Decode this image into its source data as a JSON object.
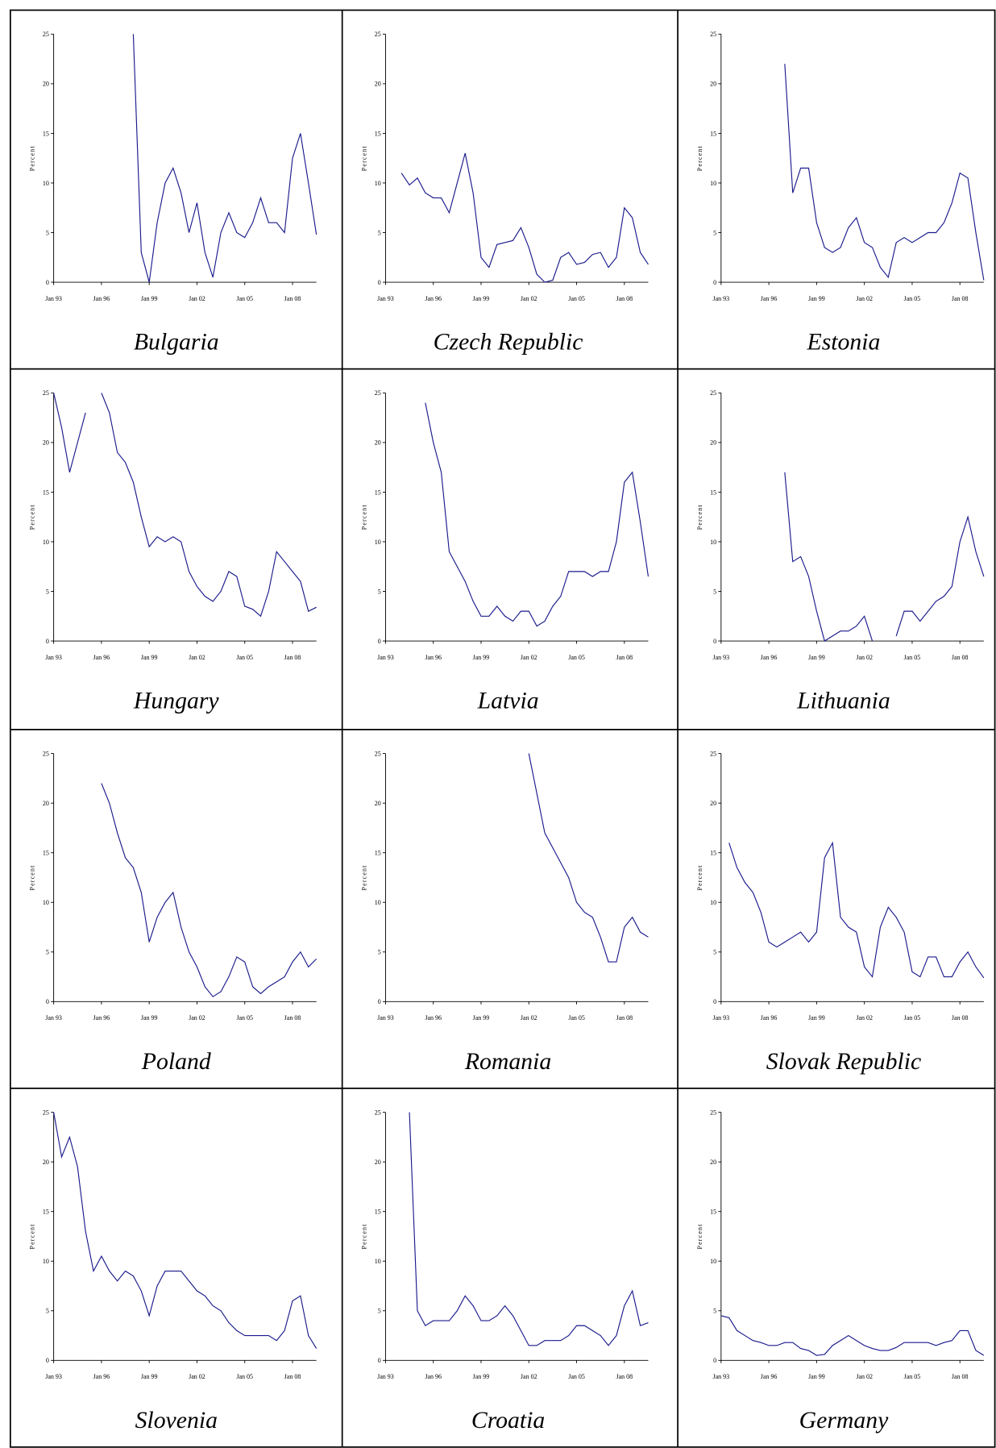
{
  "chart_data": [
    {
      "type": "line",
      "title": "Bulgaria",
      "y_label": "Percent",
      "color": "#1a1a8c",
      "x": [
        "Jan 93",
        "Jul 93",
        "Jan 94",
        "Jul 94",
        "Jan 95",
        "Jul 95",
        "Jan 96",
        "Jul 96",
        "Jan 97",
        "Jul 97",
        "Jan 98",
        "Jul 98",
        "Jan 99",
        "Jul 99",
        "Jan 00",
        "Jul 00",
        "Jan 01",
        "Jul 01",
        "Jan 02",
        "Jul 02",
        "Jan 03",
        "Jul 03",
        "Jan 04",
        "Jul 04",
        "Jan 05",
        "Jul 05",
        "Jan 06",
        "Jul 06",
        "Jan 07",
        "Jul 07",
        "Jan 08",
        "Jul 08",
        "Jan 09",
        "Jul 09"
      ],
      "values": [
        null,
        null,
        null,
        null,
        null,
        null,
        null,
        null,
        null,
        null,
        25,
        3,
        0,
        6,
        10,
        11.5,
        9,
        5,
        8,
        3,
        0.5,
        5,
        7,
        5,
        4.5,
        6,
        8.5,
        6,
        6,
        5,
        12.5,
        15,
        10,
        4.8
      ],
      "xticks": [
        "Jan 93",
        "Jan 96",
        "Jan 99",
        "Jan 02",
        "Jan 05",
        "Jan 08"
      ],
      "ylim": [
        0,
        25
      ],
      "yticks": [
        0,
        5,
        10,
        15,
        20,
        25
      ]
    },
    {
      "type": "line",
      "title": "Czech Republic",
      "y_label": "Percent",
      "color": "#1a1a8c",
      "x": [
        "Jan 93",
        "Jul 93",
        "Jan 94",
        "Jul 94",
        "Jan 95",
        "Jul 95",
        "Jan 96",
        "Jul 96",
        "Jan 97",
        "Jul 97",
        "Jan 98",
        "Jul 98",
        "Jan 99",
        "Jul 99",
        "Jan 00",
        "Jul 00",
        "Jan 01",
        "Jul 01",
        "Jan 02",
        "Jul 02",
        "Jan 03",
        "Jul 03",
        "Jan 04",
        "Jul 04",
        "Jan 05",
        "Jul 05",
        "Jan 06",
        "Jul 06",
        "Jan 07",
        "Jul 07",
        "Jan 08",
        "Jul 08",
        "Jan 09",
        "Jul 09"
      ],
      "values": [
        null,
        null,
        11,
        9.8,
        10.5,
        9,
        8.5,
        8.5,
        7,
        10,
        13,
        9,
        2.5,
        1.5,
        3.8,
        4,
        4.2,
        5.5,
        3.5,
        0.8,
        0,
        0.2,
        2.5,
        3,
        1.8,
        2,
        2.8,
        3,
        1.5,
        2.5,
        7.5,
        6.5,
        3,
        1.8
      ],
      "xticks": [
        "Jan 93",
        "Jan 96",
        "Jan 99",
        "Jan 02",
        "Jan 05",
        "Jan 08"
      ],
      "ylim": [
        0,
        25
      ],
      "yticks": [
        0,
        5,
        10,
        15,
        20,
        25
      ]
    },
    {
      "type": "line",
      "title": "Estonia",
      "y_label": "Percent",
      "color": "#1a1a8c",
      "x": [
        "Jan 93",
        "Jul 93",
        "Jan 94",
        "Jul 94",
        "Jan 95",
        "Jul 95",
        "Jan 96",
        "Jul 96",
        "Jan 97",
        "Jul 97",
        "Jan 98",
        "Jul 98",
        "Jan 99",
        "Jul 99",
        "Jan 00",
        "Jul 00",
        "Jan 01",
        "Jul 01",
        "Jan 02",
        "Jul 02",
        "Jan 03",
        "Jul 03",
        "Jan 04",
        "Jul 04",
        "Jan 05",
        "Jul 05",
        "Jan 06",
        "Jul 06",
        "Jan 07",
        "Jul 07",
        "Jan 08",
        "Jul 08",
        "Jan 09",
        "Jul 09"
      ],
      "values": [
        null,
        null,
        null,
        null,
        null,
        null,
        null,
        null,
        22,
        9,
        11.5,
        11.5,
        6,
        3.5,
        3,
        3.5,
        5.5,
        6.5,
        4,
        3.5,
        1.5,
        0.5,
        4,
        4.5,
        4,
        4.5,
        5,
        5,
        6,
        8,
        11,
        10.5,
        5,
        0.2
      ],
      "xticks": [
        "Jan 93",
        "Jan 96",
        "Jan 99",
        "Jan 02",
        "Jan 05",
        "Jan 08"
      ],
      "ylim": [
        0,
        25
      ],
      "yticks": [
        0,
        5,
        10,
        15,
        20,
        25
      ]
    },
    {
      "type": "line",
      "title": "Hungary",
      "y_label": "Percent",
      "color": "#1a1a8c",
      "x": [
        "Jan 93",
        "Jul 93",
        "Jan 94",
        "Jul 94",
        "Jan 95",
        "Jul 95",
        "Jan 96",
        "Jul 96",
        "Jan 97",
        "Jul 97",
        "Jan 98",
        "Jul 98",
        "Jan 99",
        "Jul 99",
        "Jan 00",
        "Jul 00",
        "Jan 01",
        "Jul 01",
        "Jan 02",
        "Jul 02",
        "Jan 03",
        "Jul 03",
        "Jan 04",
        "Jul 04",
        "Jan 05",
        "Jul 05",
        "Jan 06",
        "Jul 06",
        "Jan 07",
        "Jul 07",
        "Jan 08",
        "Jul 08",
        "Jan 09",
        "Jul 09"
      ],
      "values": [
        25,
        21.5,
        17,
        20,
        23,
        null,
        25,
        23,
        19,
        18,
        16,
        12.5,
        9.5,
        10.5,
        10,
        10.5,
        10,
        7,
        5.5,
        4.5,
        4,
        5,
        7,
        6.5,
        3.5,
        3.2,
        2.5,
        5,
        9,
        8,
        7,
        6,
        3,
        3.4
      ],
      "xticks": [
        "Jan 93",
        "Jan 96",
        "Jan 99",
        "Jan 02",
        "Jan 05",
        "Jan 08"
      ],
      "ylim": [
        0,
        25
      ],
      "yticks": [
        0,
        5,
        10,
        15,
        20,
        25
      ]
    },
    {
      "type": "line",
      "title": "Latvia",
      "y_label": "Percent",
      "color": "#1a1a8c",
      "x": [
        "Jan 93",
        "Jul 93",
        "Jan 94",
        "Jul 94",
        "Jan 95",
        "Jul 95",
        "Jan 96",
        "Jul 96",
        "Jan 97",
        "Jul 97",
        "Jan 98",
        "Jul 98",
        "Jan 99",
        "Jul 99",
        "Jan 00",
        "Jul 00",
        "Jan 01",
        "Jul 01",
        "Jan 02",
        "Jul 02",
        "Jan 03",
        "Jul 03",
        "Jan 04",
        "Jul 04",
        "Jan 05",
        "Jul 05",
        "Jan 06",
        "Jul 06",
        "Jan 07",
        "Jul 07",
        "Jan 08",
        "Jul 08",
        "Jan 09",
        "Jul 09"
      ],
      "values": [
        null,
        null,
        null,
        null,
        null,
        24,
        20,
        17,
        9,
        7.5,
        6,
        4,
        2.5,
        2.5,
        3.5,
        2.5,
        2,
        3,
        3,
        1.5,
        2,
        3.5,
        4.5,
        7,
        7,
        7,
        6.5,
        7,
        7,
        10,
        16,
        17,
        12,
        6.5
      ],
      "xticks": [
        "Jan 93",
        "Jan 96",
        "Jan 99",
        "Jan 02",
        "Jan 05",
        "Jan 08"
      ],
      "ylim": [
        0,
        25
      ],
      "yticks": [
        0,
        5,
        10,
        15,
        20,
        25
      ]
    },
    {
      "type": "line",
      "title": "Lithuania",
      "y_label": "Percent",
      "color": "#1a1a8c",
      "x": [
        "Jan 93",
        "Jul 93",
        "Jan 94",
        "Jul 94",
        "Jan 95",
        "Jul 95",
        "Jan 96",
        "Jul 96",
        "Jan 97",
        "Jul 97",
        "Jan 98",
        "Jul 98",
        "Jan 99",
        "Jul 99",
        "Jan 00",
        "Jul 00",
        "Jan 01",
        "Jul 01",
        "Jan 02",
        "Jul 02",
        "Jan 03",
        "Jul 03",
        "Jan 04",
        "Jul 04",
        "Jan 05",
        "Jul 05",
        "Jan 06",
        "Jul 06",
        "Jan 07",
        "Jul 07",
        "Jan 08",
        "Jul 08",
        "Jan 09",
        "Jul 09"
      ],
      "values": [
        null,
        null,
        null,
        null,
        null,
        null,
        null,
        null,
        17,
        8,
        8.5,
        6.5,
        3,
        0,
        0.5,
        1,
        1,
        1.5,
        2.5,
        0,
        null,
        null,
        0.5,
        3,
        3,
        2,
        3,
        4,
        4.5,
        5.5,
        10,
        12.5,
        9,
        6.5
      ],
      "xticks": [
        "Jan 93",
        "Jan 96",
        "Jan 99",
        "Jan 02",
        "Jan 05",
        "Jan 08"
      ],
      "ylim": [
        0,
        25
      ],
      "yticks": [
        0,
        5,
        10,
        15,
        20,
        25
      ]
    },
    {
      "type": "line",
      "title": "Poland",
      "y_label": "Percent",
      "color": "#1a1a8c",
      "x": [
        "Jan 93",
        "Jul 93",
        "Jan 94",
        "Jul 94",
        "Jan 95",
        "Jul 95",
        "Jan 96",
        "Jul 96",
        "Jan 97",
        "Jul 97",
        "Jan 98",
        "Jul 98",
        "Jan 99",
        "Jul 99",
        "Jan 00",
        "Jul 00",
        "Jan 01",
        "Jul 01",
        "Jan 02",
        "Jul 02",
        "Jan 03",
        "Jul 03",
        "Jan 04",
        "Jul 04",
        "Jan 05",
        "Jul 05",
        "Jan 06",
        "Jul 06",
        "Jan 07",
        "Jul 07",
        "Jan 08",
        "Jul 08",
        "Jan 09",
        "Jul 09"
      ],
      "values": [
        null,
        null,
        null,
        null,
        null,
        null,
        22,
        20,
        17,
        14.5,
        13.5,
        11,
        6,
        8.5,
        10,
        11,
        7.5,
        5,
        3.5,
        1.5,
        0.5,
        1,
        2.5,
        4.5,
        4,
        1.5,
        0.8,
        1.5,
        2,
        2.5,
        4,
        5,
        3.5,
        4.3
      ],
      "xticks": [
        "Jan 93",
        "Jan 96",
        "Jan 99",
        "Jan 02",
        "Jan 05",
        "Jan 08"
      ],
      "ylim": [
        0,
        25
      ],
      "yticks": [
        0,
        5,
        10,
        15,
        20,
        25
      ]
    },
    {
      "type": "line",
      "title": "Romania",
      "y_label": "Percent",
      "color": "#1a1a8c",
      "x": [
        "Jan 93",
        "Jul 93",
        "Jan 94",
        "Jul 94",
        "Jan 95",
        "Jul 95",
        "Jan 96",
        "Jul 96",
        "Jan 97",
        "Jul 97",
        "Jan 98",
        "Jul 98",
        "Jan 99",
        "Jul 99",
        "Jan 00",
        "Jul 00",
        "Jan 01",
        "Jul 01",
        "Jan 02",
        "Jul 02",
        "Jan 03",
        "Jul 03",
        "Jan 04",
        "Jul 04",
        "Jan 05",
        "Jul 05",
        "Jan 06",
        "Jul 06",
        "Jan 07",
        "Jul 07",
        "Jan 08",
        "Jul 08",
        "Jan 09",
        "Jul 09"
      ],
      "values": [
        null,
        null,
        null,
        null,
        null,
        null,
        null,
        null,
        null,
        null,
        null,
        null,
        null,
        null,
        null,
        null,
        null,
        null,
        25,
        21,
        17,
        15.5,
        14,
        12.5,
        10,
        9,
        8.5,
        6.5,
        4,
        4,
        7.5,
        8.5,
        7,
        6.5
      ],
      "xticks": [
        "Jan 93",
        "Jan 96",
        "Jan 99",
        "Jan 02",
        "Jan 05",
        "Jan 08"
      ],
      "ylim": [
        0,
        25
      ],
      "yticks": [
        0,
        5,
        10,
        15,
        20,
        25
      ]
    },
    {
      "type": "line",
      "title": "Slovak Republic",
      "y_label": "Percent",
      "color": "#1a1a8c",
      "x": [
        "Jan 93",
        "Jul 93",
        "Jan 94",
        "Jul 94",
        "Jan 95",
        "Jul 95",
        "Jan 96",
        "Jul 96",
        "Jan 97",
        "Jul 97",
        "Jan 98",
        "Jul 98",
        "Jan 99",
        "Jul 99",
        "Jan 00",
        "Jul 00",
        "Jan 01",
        "Jul 01",
        "Jan 02",
        "Jul 02",
        "Jan 03",
        "Jul 03",
        "Jan 04",
        "Jul 04",
        "Jan 05",
        "Jul 05",
        "Jan 06",
        "Jul 06",
        "Jan 07",
        "Jul 07",
        "Jan 08",
        "Jul 08",
        "Jan 09",
        "Jul 09"
      ],
      "values": [
        null,
        16,
        13.5,
        12,
        11,
        9,
        6,
        5.5,
        6,
        6.5,
        7,
        6,
        7,
        14.5,
        16,
        8.5,
        7.5,
        7,
        3.5,
        2.5,
        7.5,
        9.5,
        8.5,
        7,
        3,
        2.5,
        4.5,
        4.5,
        2.5,
        2.5,
        4,
        5,
        3.5,
        2.4
      ],
      "xticks": [
        "Jan 93",
        "Jan 96",
        "Jan 99",
        "Jan 02",
        "Jan 05",
        "Jan 08"
      ],
      "ylim": [
        0,
        25
      ],
      "yticks": [
        0,
        5,
        10,
        15,
        20,
        25
      ]
    },
    {
      "type": "line",
      "title": "Slovenia",
      "y_label": "Percent",
      "color": "#1a1a8c",
      "x": [
        "Jan 93",
        "Jul 93",
        "Jan 94",
        "Jul 94",
        "Jan 95",
        "Jul 95",
        "Jan 96",
        "Jul 96",
        "Jan 97",
        "Jul 97",
        "Jan 98",
        "Jul 98",
        "Jan 99",
        "Jul 99",
        "Jan 00",
        "Jul 00",
        "Jan 01",
        "Jul 01",
        "Jan 02",
        "Jul 02",
        "Jan 03",
        "Jul 03",
        "Jan 04",
        "Jul 04",
        "Jan 05",
        "Jul 05",
        "Jan 06",
        "Jul 06",
        "Jan 07",
        "Jul 07",
        "Jan 08",
        "Jul 08",
        "Jan 09",
        "Jul 09"
      ],
      "values": [
        25,
        20.5,
        22.5,
        19.5,
        13,
        9,
        10.5,
        9,
        8,
        9,
        8.5,
        7,
        4.5,
        7.5,
        9,
        9,
        9,
        8,
        7,
        6.5,
        5.5,
        5,
        3.8,
        3,
        2.5,
        2.5,
        2.5,
        2.5,
        2,
        3,
        6,
        6.5,
        2.5,
        1.2
      ],
      "xticks": [
        "Jan 93",
        "Jan 96",
        "Jan 99",
        "Jan 02",
        "Jan 05",
        "Jan 08"
      ],
      "ylim": [
        0,
        25
      ],
      "yticks": [
        0,
        5,
        10,
        15,
        20,
        25
      ]
    },
    {
      "type": "line",
      "title": "Croatia",
      "y_label": "Percent",
      "color": "#1a1a8c",
      "x": [
        "Jan 93",
        "Jul 93",
        "Jan 94",
        "Jul 94",
        "Jan 95",
        "Jul 95",
        "Jan 96",
        "Jul 96",
        "Jan 97",
        "Jul 97",
        "Jan 98",
        "Jul 98",
        "Jan 99",
        "Jul 99",
        "Jan 00",
        "Jul 00",
        "Jan 01",
        "Jul 01",
        "Jan 02",
        "Jul 02",
        "Jan 03",
        "Jul 03",
        "Jan 04",
        "Jul 04",
        "Jan 05",
        "Jul 05",
        "Jan 06",
        "Jul 06",
        "Jan 07",
        "Jul 07",
        "Jan 08",
        "Jul 08",
        "Jan 09",
        "Jul 09"
      ],
      "values": [
        null,
        null,
        null,
        25,
        5,
        3.5,
        4,
        4,
        4,
        5,
        6.5,
        5.5,
        4,
        4,
        4.5,
        5.5,
        4.5,
        3,
        1.5,
        1.5,
        2,
        2,
        2,
        2.5,
        3.5,
        3.5,
        3,
        2.5,
        1.5,
        2.5,
        5.5,
        7,
        3.5,
        3.8
      ],
      "xticks": [
        "Jan 93",
        "Jan 96",
        "Jan 99",
        "Jan 02",
        "Jan 05",
        "Jan 08"
      ],
      "ylim": [
        0,
        25
      ],
      "yticks": [
        0,
        5,
        10,
        15,
        20,
        25
      ]
    },
    {
      "type": "line",
      "title": "Germany",
      "y_label": "Percent",
      "color": "#1a1a8c",
      "x": [
        "Jan 93",
        "Jul 93",
        "Jan 94",
        "Jul 94",
        "Jan 95",
        "Jul 95",
        "Jan 96",
        "Jul 96",
        "Jan 97",
        "Jul 97",
        "Jan 98",
        "Jul 98",
        "Jan 99",
        "Jul 99",
        "Jan 00",
        "Jul 00",
        "Jan 01",
        "Jul 01",
        "Jan 02",
        "Jul 02",
        "Jan 03",
        "Jul 03",
        "Jan 04",
        "Jul 04",
        "Jan 05",
        "Jul 05",
        "Jan 06",
        "Jul 06",
        "Jan 07",
        "Jul 07",
        "Jan 08",
        "Jul 08",
        "Jan 09",
        "Jul 09"
      ],
      "values": [
        4.5,
        4.3,
        3,
        2.5,
        2,
        1.8,
        1.5,
        1.5,
        1.8,
        1.8,
        1.2,
        1,
        0.5,
        0.6,
        1.5,
        2,
        2.5,
        2,
        1.5,
        1.2,
        1,
        1,
        1.3,
        1.8,
        1.8,
        1.8,
        1.8,
        1.5,
        1.8,
        2,
        3,
        3,
        1,
        0.5
      ],
      "xticks": [
        "Jan 93",
        "Jan 96",
        "Jan 99",
        "Jan 02",
        "Jan 05",
        "Jan 08"
      ],
      "ylim": [
        0,
        25
      ],
      "yticks": [
        0,
        5,
        10,
        15,
        20,
        25
      ]
    }
  ]
}
